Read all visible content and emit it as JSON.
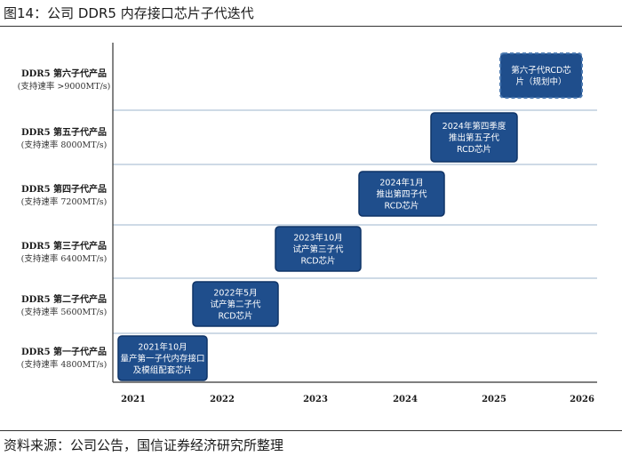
{
  "figure_title": "图14：公司 DDR5 内存接口芯片子代迭代",
  "source": "资料来源：公司公告，国信证券经济研究所整理",
  "colors": {
    "box_fill": "#1f4e8c",
    "box_border": "#0f3366",
    "planned_border": "#1f4e8c",
    "grid": "#9db4cc",
    "axis": "#333333"
  },
  "chart_data": {
    "type": "timeline",
    "xlabel": "",
    "ylabel": "",
    "x_categories": [
      "2021",
      "2022",
      "2023",
      "2024",
      "2025",
      "2026"
    ],
    "rows": [
      {
        "title": "DDR5 第一子代产品",
        "subtitle": "(支持速率 4800MT/s)"
      },
      {
        "title": "DDR5 第二子代产品",
        "subtitle": "(支持速率 5600MT/s)"
      },
      {
        "title": "DDR5 第三子代产品",
        "subtitle": "(支持速率 6400MT/s)"
      },
      {
        "title": "DDR5 第四子代产品",
        "subtitle": "(支持速率 7200MT/s)"
      },
      {
        "title": "DDR5 第五子代产品",
        "subtitle": "(支持速率 8000MT/s)"
      },
      {
        "title": "DDR5 第六子代产品",
        "subtitle": "(支持速率 >9000MT/s)"
      }
    ],
    "events": [
      {
        "row": 0,
        "date": "2021-10",
        "lines": [
          "2021年10月",
          "量产第一子代内存接口",
          "及模组配套芯片"
        ],
        "planned": false
      },
      {
        "row": 1,
        "date": "2022-05",
        "lines": [
          "2022年5月",
          "试产第二子代",
          "RCD芯片"
        ],
        "planned": false
      },
      {
        "row": 2,
        "date": "2023-10",
        "lines": [
          "2023年10月",
          "试产第三子代",
          "RCD芯片"
        ],
        "planned": false
      },
      {
        "row": 3,
        "date": "2024-01",
        "lines": [
          "2024年1月",
          "推出第四子代",
          "RCD芯片"
        ],
        "planned": false
      },
      {
        "row": 4,
        "date": "2024-Q4",
        "lines": [
          "2024年第四季度",
          "推出第五子代",
          "RCD芯片"
        ],
        "planned": false
      },
      {
        "row": 5,
        "date": "planned",
        "lines": [
          "第六子代RCD芯",
          "片（规划中）"
        ],
        "planned": true
      }
    ]
  }
}
